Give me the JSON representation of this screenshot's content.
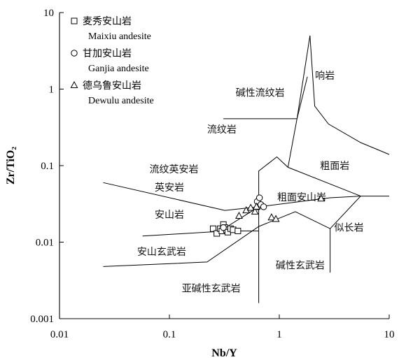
{
  "chart_data": {
    "type": "scatter",
    "title": "",
    "xlabel": "Nb/Y",
    "ylabel": "Zr/TiO₂",
    "xscale": "log",
    "yscale": "log",
    "xlim": [
      0.01,
      10
    ],
    "ylim": [
      0.001,
      10
    ],
    "grid": false,
    "legend_position": "top-left",
    "x_ticks": [
      {
        "value": 0.01,
        "label": "0.01"
      },
      {
        "value": 0.1,
        "label": "0.1"
      },
      {
        "value": 1,
        "label": "1"
      },
      {
        "value": 10,
        "label": "10"
      }
    ],
    "y_ticks": [
      {
        "value": 0.001,
        "label": "0.001"
      },
      {
        "value": 0.01,
        "label": "0.01"
      },
      {
        "value": 0.1,
        "label": "0.1"
      },
      {
        "value": 1,
        "label": "1"
      },
      {
        "value": 10,
        "label": "10"
      }
    ],
    "series": [
      {
        "name_zh": "麦秀安山岩",
        "name_en": "Maixiu andesite",
        "marker": "square",
        "points": [
          {
            "x": 0.25,
            "y": 0.015
          },
          {
            "x": 0.27,
            "y": 0.013
          },
          {
            "x": 0.29,
            "y": 0.015
          },
          {
            "x": 0.3,
            "y": 0.014
          },
          {
            "x": 0.31,
            "y": 0.017
          },
          {
            "x": 0.32,
            "y": 0.0155
          },
          {
            "x": 0.33,
            "y": 0.0145
          },
          {
            "x": 0.34,
            "y": 0.0135
          },
          {
            "x": 0.36,
            "y": 0.015
          },
          {
            "x": 0.38,
            "y": 0.0145
          },
          {
            "x": 0.42,
            "y": 0.014
          }
        ]
      },
      {
        "name_zh": "甘加安山岩",
        "name_en": "Ganjia andesite",
        "marker": "circle",
        "points": [
          {
            "x": 0.63,
            "y": 0.034
          },
          {
            "x": 0.66,
            "y": 0.038
          },
          {
            "x": 0.64,
            "y": 0.029
          },
          {
            "x": 0.68,
            "y": 0.031
          },
          {
            "x": 0.72,
            "y": 0.029
          },
          {
            "x": 0.31,
            "y": 0.0155
          }
        ]
      },
      {
        "name_zh": "德乌鲁安山岩",
        "name_en": "Dewulu andesite",
        "marker": "triangle",
        "points": [
          {
            "x": 0.43,
            "y": 0.022
          },
          {
            "x": 0.5,
            "y": 0.026
          },
          {
            "x": 0.55,
            "y": 0.028
          },
          {
            "x": 0.6,
            "y": 0.025
          },
          {
            "x": 0.62,
            "y": 0.029
          },
          {
            "x": 0.85,
            "y": 0.021
          },
          {
            "x": 0.93,
            "y": 0.02
          },
          {
            "x": 2.4,
            "y": 0.037
          }
        ]
      }
    ],
    "boundaries": [
      [
        [
          0.025,
          0.06
        ],
        [
          0.32,
          0.026
        ],
        [
          0.65,
          0.029
        ]
      ],
      [
        [
          0.057,
          0.012
        ],
        [
          0.33,
          0.014
        ],
        [
          0.65,
          0.014
        ]
      ],
      [
        [
          0.025,
          0.0048
        ],
        [
          0.22,
          0.0055
        ],
        [
          0.65,
          0.016
        ],
        [
          1.4,
          0.025
        ],
        [
          2.9,
          0.015
        ],
        [
          5.5,
          0.04
        ],
        [
          10,
          0.04
        ]
      ],
      [
        [
          0.65,
          0.0016
        ],
        [
          0.65,
          0.085
        ],
        [
          0.95,
          0.13
        ],
        [
          1.2,
          0.095
        ],
        [
          5.5,
          0.04
        ]
      ],
      [
        [
          0.29,
          0.014
        ],
        [
          0.65,
          0.029
        ],
        [
          2.9,
          0.038
        ],
        [
          5.5,
          0.04
        ]
      ],
      [
        [
          1.2,
          0.095
        ],
        [
          1.45,
          0.41
        ]
      ],
      [
        [
          0.31,
          0.41
        ],
        [
          1.45,
          0.41
        ]
      ],
      [
        [
          1.45,
          0.41
        ],
        [
          1.9,
          5.0
        ]
      ],
      [
        [
          1.45,
          0.41
        ],
        [
          1.8,
          1.45
        ]
      ],
      [
        [
          1.9,
          5.0
        ],
        [
          2.1,
          0.6
        ],
        [
          2.8,
          0.35
        ],
        [
          5.5,
          0.2
        ],
        [
          10,
          0.14
        ]
      ],
      [
        [
          2.9,
          0.015
        ],
        [
          2.9,
          0.004
        ]
      ]
    ],
    "region_labels": [
      {
        "text": "碱性流纹岩",
        "x": 0.67,
        "y": 0.9
      },
      {
        "text": "响岩",
        "x": 2.6,
        "y": 1.5
      },
      {
        "text": "流纹岩",
        "x": 0.3,
        "y": 0.3
      },
      {
        "text": "流纹英安岩",
        "x": 0.11,
        "y": 0.09
      },
      {
        "text": "英安岩",
        "x": 0.1,
        "y": 0.052
      },
      {
        "text": "粗面岩",
        "x": 3.2,
        "y": 0.1
      },
      {
        "text": "粗面安山岩",
        "x": 1.6,
        "y": 0.039
      },
      {
        "text": "安山岩",
        "x": 0.1,
        "y": 0.023
      },
      {
        "text": "似长岩",
        "x": 4.3,
        "y": 0.0155
      },
      {
        "text": "安山玄武岩",
        "x": 0.085,
        "y": 0.0075
      },
      {
        "text": "碱性玄武岩",
        "x": 1.55,
        "y": 0.005
      },
      {
        "text": "亚碱性玄武岩",
        "x": 0.24,
        "y": 0.0025
      }
    ]
  }
}
